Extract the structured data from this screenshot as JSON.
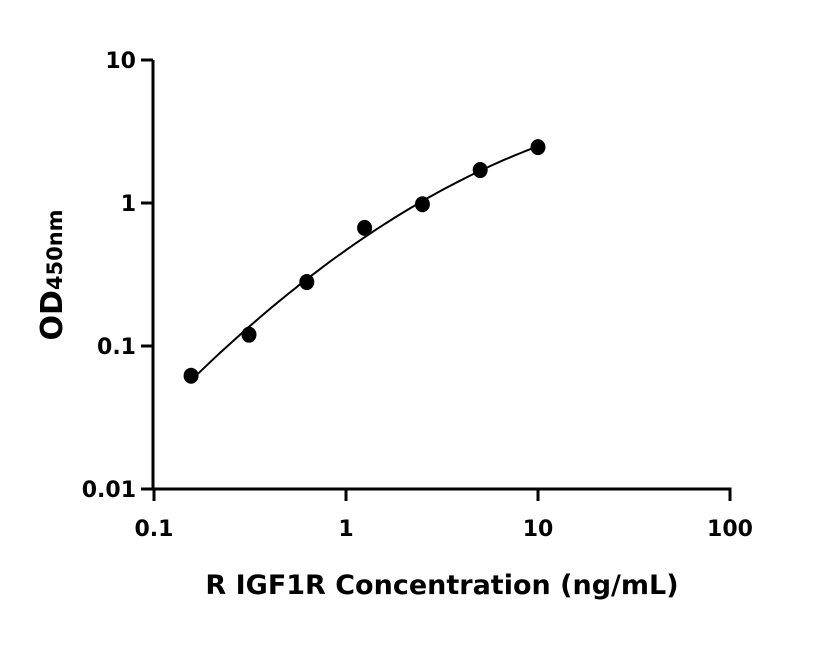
{
  "chart_data": {
    "type": "scatter",
    "title": "",
    "xlabel": "R IGF1R Concentration (ng/mL)",
    "ylabel_main": "OD",
    "ylabel_sub": "450nm",
    "x_scale": "log",
    "y_scale": "log",
    "xlim": [
      0.1,
      100
    ],
    "ylim": [
      0.01,
      10
    ],
    "x_ticks": [
      0.1,
      1,
      10,
      100
    ],
    "x_tick_labels": [
      "0.1",
      "1",
      "10",
      "100"
    ],
    "y_ticks": [
      0.01,
      0.1,
      1,
      10
    ],
    "y_tick_labels": [
      "0.01",
      "0.1",
      "1",
      "10"
    ],
    "grid": false,
    "legend": "none",
    "fit_curve": true,
    "color": "#000000",
    "x": [
      0.156,
      0.3125,
      0.625,
      1.25,
      2.5,
      5,
      10
    ],
    "y": [
      0.062,
      0.12,
      0.28,
      0.67,
      0.98,
      1.7,
      2.46
    ]
  }
}
